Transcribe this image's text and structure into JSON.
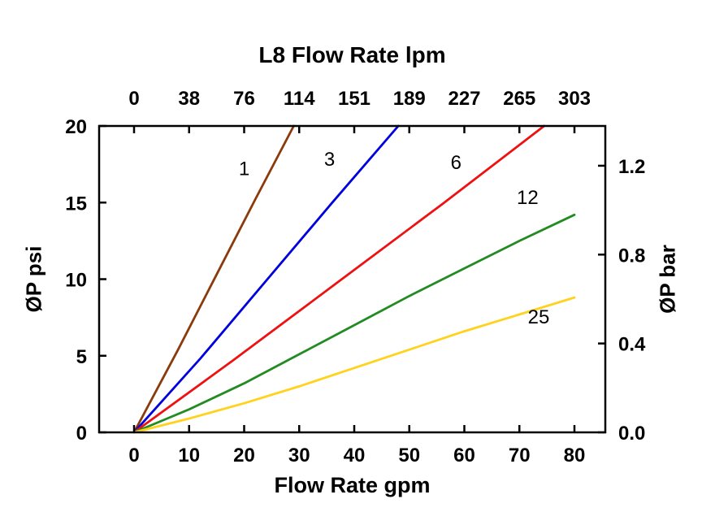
{
  "chart_data": {
    "type": "line",
    "title": "L8 Flow Rate lpm",
    "xlabel": "Flow Rate gpm",
    "ylabel_left": "ØP psi",
    "ylabel_right": "ØP bar",
    "x_gpm_ticks": [
      "0",
      "10",
      "20",
      "30",
      "40",
      "50",
      "60",
      "70",
      "80"
    ],
    "x_lpm_ticks": [
      "0",
      "38",
      "76",
      "114",
      "151",
      "189",
      "227",
      "265",
      "303"
    ],
    "y_psi_ticks": [
      "0",
      "5",
      "10",
      "15",
      "20"
    ],
    "y_bar_ticks": [
      "0.0",
      "0.4",
      "0.8",
      "1.2"
    ],
    "xlim_gpm": [
      0,
      80
    ],
    "ylim_psi": [
      0,
      20
    ],
    "grid": false,
    "legend": "inline-curve-labels",
    "series": [
      {
        "name": "1",
        "color": "#8B3A0B",
        "points": [
          [
            0,
            0
          ],
          [
            8,
            5.4
          ],
          [
            15,
            10.3
          ],
          [
            22,
            15.2
          ],
          [
            29,
            20
          ]
        ]
      },
      {
        "name": "3",
        "color": "#0000DD",
        "points": [
          [
            0,
            0
          ],
          [
            12,
            4.8
          ],
          [
            24,
            9.9
          ],
          [
            36,
            15.0
          ],
          [
            48,
            20
          ]
        ]
      },
      {
        "name": "6",
        "color": "#EE1111",
        "points": [
          [
            0,
            0
          ],
          [
            18,
            4.7
          ],
          [
            37,
            9.8
          ],
          [
            56,
            14.9
          ],
          [
            74.5,
            20
          ]
        ]
      },
      {
        "name": "12",
        "color": "#228B22",
        "points": [
          [
            0,
            0
          ],
          [
            10,
            1.5
          ],
          [
            20,
            3.2
          ],
          [
            30,
            5.1
          ],
          [
            40,
            7.0
          ],
          [
            50,
            8.9
          ],
          [
            60,
            10.7
          ],
          [
            70,
            12.5
          ],
          [
            80,
            14.2
          ]
        ]
      },
      {
        "name": "25",
        "color": "#FFD21E",
        "points": [
          [
            0,
            0
          ],
          [
            10,
            0.9
          ],
          [
            20,
            1.9
          ],
          [
            30,
            3.0
          ],
          [
            40,
            4.2
          ],
          [
            50,
            5.4
          ],
          [
            60,
            6.6
          ],
          [
            70,
            7.7
          ],
          [
            80,
            8.8
          ]
        ]
      }
    ],
    "curve_labels": [
      {
        "text": "1",
        "x": 20,
        "y": 16.8
      },
      {
        "text": "3",
        "x": 35.5,
        "y": 17.4
      },
      {
        "text": "6",
        "x": 58.5,
        "y": 17.2
      },
      {
        "text": "12",
        "x": 71.5,
        "y": 14.9
      },
      {
        "text": "25",
        "x": 73.5,
        "y": 7.1
      }
    ]
  }
}
